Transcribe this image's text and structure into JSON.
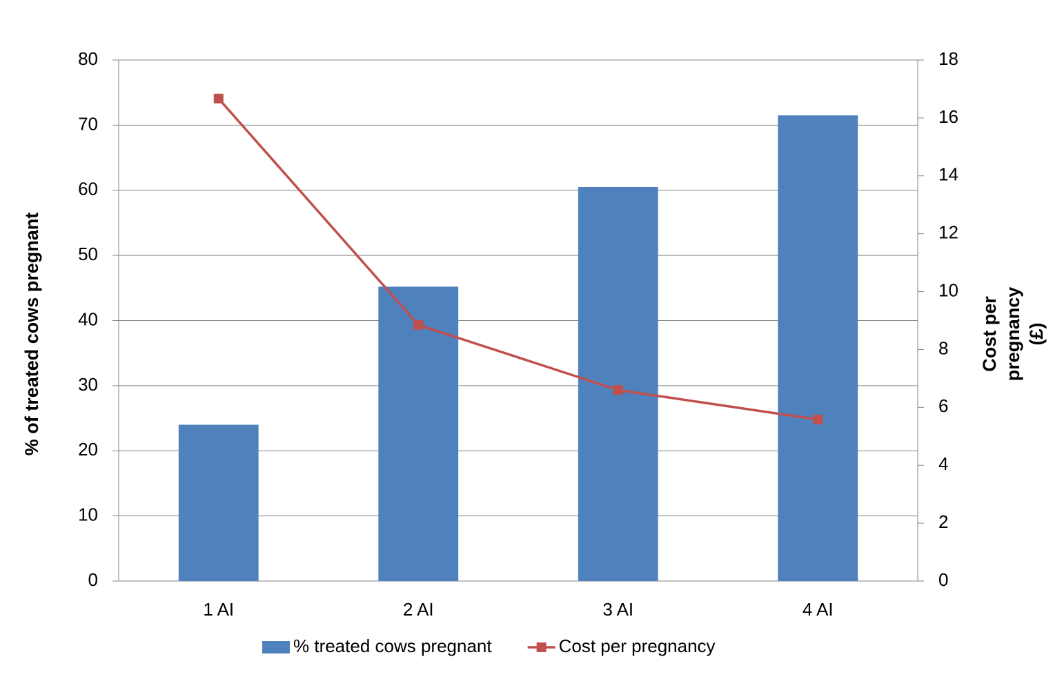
{
  "chart_data": {
    "type": "bar_line",
    "categories": [
      "1 AI",
      "2 AI",
      "3 AI",
      "4 AI"
    ],
    "ylabel": "% of treated cows pregnant",
    "y2label": "Cost per pregnancy (£)",
    "series": [
      {
        "name": "% treated cows pregnant",
        "type": "bar",
        "color": "#4f81bd",
        "values": [
          24,
          45.2,
          60.5,
          71.5
        ]
      },
      {
        "name": "Cost per pregnancy",
        "type": "line",
        "axis": "y2",
        "color": "#c0504d",
        "values": [
          16.67,
          8.85,
          6.6,
          5.58
        ]
      }
    ],
    "ylim": [
      0,
      80
    ],
    "yticks": [
      0,
      10,
      20,
      30,
      40,
      50,
      60,
      70,
      80
    ],
    "y2lim": [
      0,
      18
    ],
    "y2ticks": [
      0,
      2,
      4,
      6,
      8,
      10,
      12,
      14,
      16,
      18
    ],
    "grid": true,
    "legend": "bottom"
  }
}
